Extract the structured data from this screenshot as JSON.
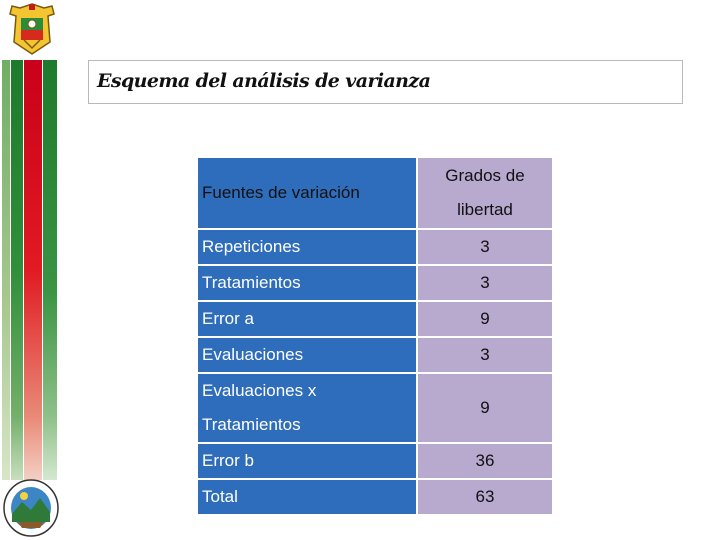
{
  "slide": {
    "title": "Esquema del análisis de varianza"
  },
  "table": {
    "headers": {
      "source": "Fuentes de variación",
      "df_line1": "Grados de",
      "df_line2": "libertad"
    },
    "rows": [
      {
        "label": "Repeticiones",
        "value": "3"
      },
      {
        "label": "Tratamientos",
        "value": "3"
      },
      {
        "label": "Error a",
        "value": "9"
      },
      {
        "label": "Evaluaciones",
        "value": "3"
      },
      {
        "label_line1": "Evaluaciones x",
        "label_line2": "Tratamientos",
        "value": "9"
      },
      {
        "label": "Error b",
        "value": "36"
      },
      {
        "label": "Total",
        "value": "63"
      }
    ]
  },
  "colors": {
    "header_blue": "#2e6dbb",
    "value_lavender": "#b8a9cf",
    "stripe_green": "#1e7a2c",
    "stripe_red": "#e01b22"
  },
  "icons": {
    "top_left": "crest-logo",
    "bottom_left": "university-seal-logo"
  }
}
